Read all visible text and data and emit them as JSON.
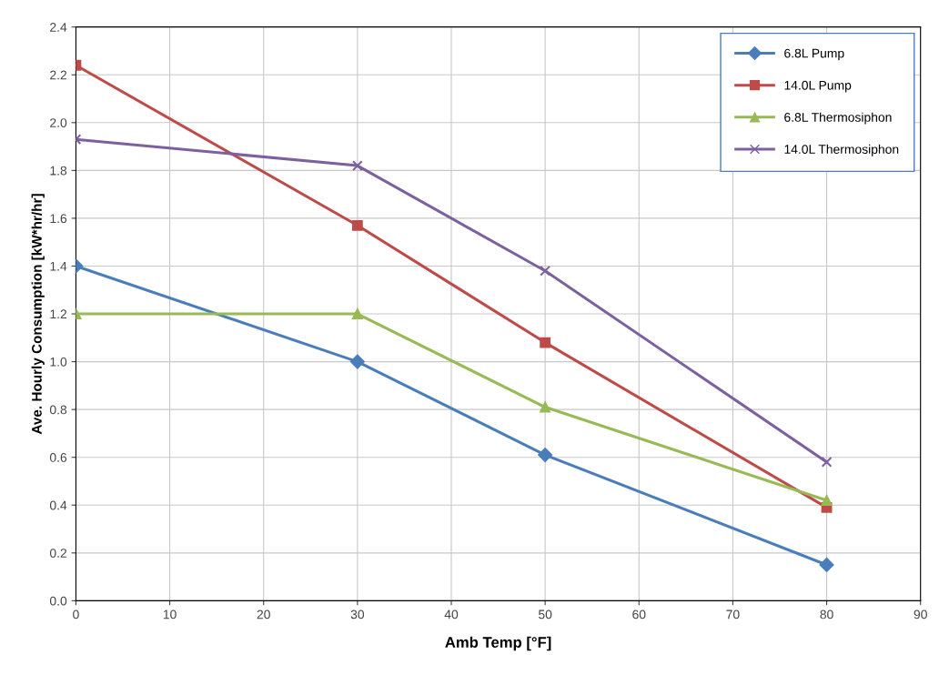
{
  "chart_data": {
    "type": "line",
    "xlabel": "Amb Temp [°F]",
    "ylabel": "Ave. Hourly Consumption [kW*hr/hr]",
    "x": [
      0,
      30,
      50,
      80
    ],
    "series": [
      {
        "name": "6.8L Pump",
        "color": "#4a7ebb",
        "marker": "diamond",
        "values": [
          1.4,
          1.0,
          0.61,
          0.15
        ]
      },
      {
        "name": "14.0L Pump",
        "color": "#be4b48",
        "marker": "square",
        "values": [
          2.24,
          1.57,
          1.08,
          0.39
        ]
      },
      {
        "name": "6.8L Thermosiphon",
        "color": "#98b954",
        "marker": "triangle",
        "values": [
          1.2,
          1.2,
          0.81,
          0.42
        ]
      },
      {
        "name": "14.0L Thermosiphon",
        "color": "#7d60a0",
        "marker": "cross",
        "values": [
          1.93,
          1.82,
          1.38,
          0.58
        ]
      }
    ],
    "xlim": [
      0,
      90
    ],
    "xticks": [
      0,
      10,
      20,
      30,
      40,
      50,
      60,
      70,
      80,
      90
    ],
    "ylim": [
      0,
      2.4
    ],
    "yticks": [
      {
        "value": 0,
        "label": "0.0"
      },
      {
        "value": 0.2,
        "label": "0.2"
      },
      {
        "value": 0.4,
        "label": "0.4"
      },
      {
        "value": 0.6,
        "label": "0.6"
      },
      {
        "value": 0.8,
        "label": "0.8"
      },
      {
        "value": 1.0,
        "label": "1.0"
      },
      {
        "value": 1.2,
        "label": "1.2"
      },
      {
        "value": 1.4,
        "label": "1.4"
      },
      {
        "value": 1.6,
        "label": "1.6"
      },
      {
        "value": 1.8,
        "label": "1.8"
      },
      {
        "value": 2.0,
        "label": "2.0"
      },
      {
        "value": 2.2,
        "label": "2.2"
      },
      {
        "value": 2.4,
        "label": "2.4"
      }
    ],
    "grid": true,
    "legend": "top right",
    "line_style": "solid"
  }
}
